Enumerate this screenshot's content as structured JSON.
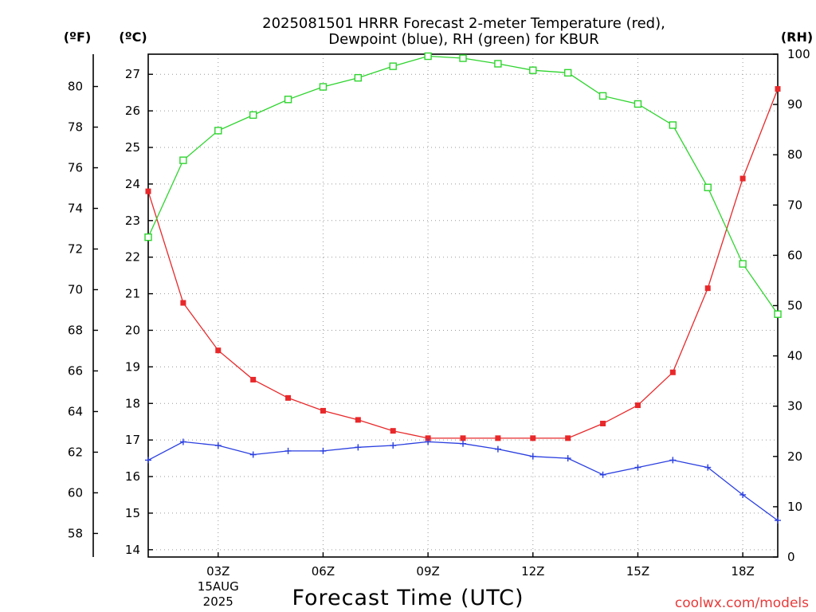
{
  "chart_data": {
    "type": "line",
    "title_line1": "2025081501 HRRR Forecast 2-meter Temperature (red),",
    "title_line2": "Dewpoint (blue), RH (green) for KBUR",
    "xlabel": "Forecast Time (UTC)",
    "watermark": "coolwx.com/models",
    "axis_units": {
      "fahrenheit": "(ºF)",
      "celsius": "(ºC)",
      "rh": "(RH)"
    },
    "x_range": [
      1,
      19
    ],
    "x_ticks": [
      {
        "x": 3,
        "label": "03Z"
      },
      {
        "x": 6,
        "label": "06Z"
      },
      {
        "x": 9,
        "label": "09Z"
      },
      {
        "x": 12,
        "label": "12Z"
      },
      {
        "x": 15,
        "label": "15Z"
      },
      {
        "x": 18,
        "label": "18Z"
      }
    ],
    "date_label": {
      "x": 3,
      "line1": "15AUG",
      "line2": "2025"
    },
    "celsius_axis": {
      "ylim": [
        13.8,
        27.55
      ],
      "ticks": [
        14,
        15,
        16,
        17,
        18,
        19,
        20,
        21,
        22,
        23,
        24,
        25,
        26,
        27
      ]
    },
    "fahrenheit_axis": {
      "ticks": [
        58,
        60,
        62,
        64,
        66,
        68,
        70,
        72,
        74,
        76,
        78,
        80
      ]
    },
    "rh_axis": {
      "ylim": [
        0,
        100
      ],
      "ticks": [
        0,
        10,
        20,
        30,
        40,
        50,
        60,
        70,
        80,
        90,
        100
      ]
    },
    "grid": true,
    "series": [
      {
        "color": "#e8282a",
        "marker": "square-filled",
        "axis": "celsius",
        "x": [
          1,
          2,
          3,
          4,
          5,
          6,
          7,
          8,
          9,
          10,
          11,
          12,
          13,
          14,
          15,
          16,
          17,
          18,
          19
        ],
        "values": [
          23.8,
          20.75,
          19.45,
          18.65,
          18.15,
          17.8,
          17.55,
          17.25,
          17.05,
          17.05,
          17.05,
          17.05,
          17.05,
          17.45,
          17.95,
          18.85,
          21.15,
          24.15,
          26.6
        ]
      },
      {
        "color": "#2a3fe0",
        "marker": "plus",
        "axis": "celsius",
        "x": [
          1,
          2,
          3,
          4,
          5,
          6,
          7,
          8,
          9,
          10,
          11,
          12,
          13,
          14,
          15,
          16,
          17,
          18,
          19
        ],
        "values": [
          16.45,
          16.95,
          16.85,
          16.6,
          16.7,
          16.7,
          16.8,
          16.85,
          16.95,
          16.9,
          16.75,
          16.55,
          16.5,
          16.05,
          16.25,
          16.45,
          16.25,
          15.5,
          14.8
        ]
      },
      {
        "color": "#2ed42e",
        "marker": "square-open",
        "axis": "rh",
        "x": [
          1,
          2,
          3,
          4,
          5,
          6,
          7,
          8,
          9,
          10,
          11,
          12,
          13,
          14,
          15,
          16,
          17,
          18,
          19
        ],
        "values": [
          63.6,
          78.9,
          84.8,
          87.9,
          91.0,
          93.5,
          95.3,
          97.6,
          99.6,
          99.2,
          98.1,
          96.8,
          96.3,
          91.7,
          90.1,
          85.9,
          73.5,
          58.3,
          48.3
        ]
      }
    ]
  }
}
